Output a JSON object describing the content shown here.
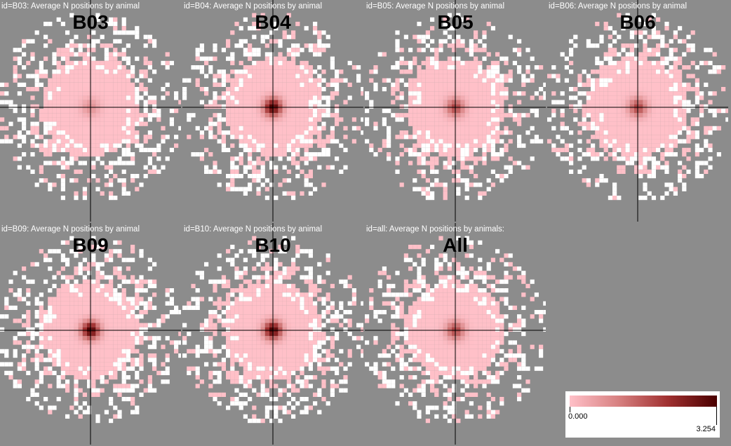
{
  "chart_data": [
    {
      "type": "heatmap",
      "id": "B03",
      "subtitle": "id=B03: Average N positions by animal",
      "title": "B03",
      "peak": "low"
    },
    {
      "type": "heatmap",
      "id": "B04",
      "subtitle": "id=B04: Average N positions by animal",
      "title": "B04",
      "peak": "high"
    },
    {
      "type": "heatmap",
      "id": "B05",
      "subtitle": "id=B05: Average N positions by animal",
      "title": "B05",
      "peak": "mid"
    },
    {
      "type": "heatmap",
      "id": "B06",
      "subtitle": "id=B06: Average N positions by animal",
      "title": "B06",
      "peak": "mid"
    },
    {
      "type": "heatmap",
      "id": "B09",
      "subtitle": "id=B09: Average N positions by animal",
      "title": "B09",
      "peak": "high"
    },
    {
      "type": "heatmap",
      "id": "B10",
      "subtitle": "id=B10: Average N positions by animal",
      "title": "B10",
      "peak": "high"
    },
    {
      "type": "heatmap",
      "id": "all",
      "subtitle": "id=all: Average N positions by animals:",
      "title": "All",
      "peak": "mid"
    }
  ],
  "legend": {
    "min": "0.000",
    "max": "3.254"
  },
  "colors": {
    "background": "#8c8c8c",
    "low": "#ffc0c8",
    "high": "#4a0000",
    "sparse": "#ffffff",
    "crosshair": "#000000"
  }
}
